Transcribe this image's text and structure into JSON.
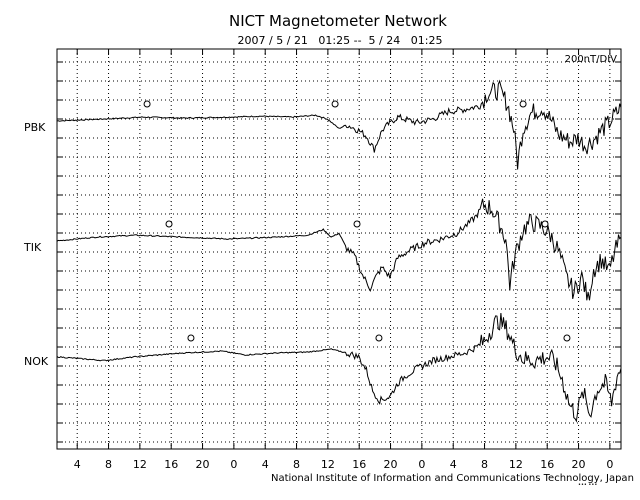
{
  "chart_data": {
    "type": "line",
    "title": "NICT Magnetometer Network",
    "subtitle": "2007 / 5 / 21   01:25 --  5 / 24   01:25",
    "scale_label": "200nT/DIV",
    "credit": "National Institute of Information and Communications Technology, Japan",
    "small_mark": "••• •••",
    "xlabel": "",
    "ylabel": "",
    "grid": true,
    "x_unit": "hours since start (2007/5/21 01:25)",
    "xlim": [
      0,
      72
    ],
    "x_tick_labels": [
      {
        "x": 2.58,
        "label": "4"
      },
      {
        "x": 6.58,
        "label": "8"
      },
      {
        "x": 10.58,
        "label": "12"
      },
      {
        "x": 14.58,
        "label": "16"
      },
      {
        "x": 18.58,
        "label": "20"
      },
      {
        "x": 22.58,
        "label": "0"
      },
      {
        "x": 26.58,
        "label": "4"
      },
      {
        "x": 30.58,
        "label": "8"
      },
      {
        "x": 34.58,
        "label": "12"
      },
      {
        "x": 38.58,
        "label": "16"
      },
      {
        "x": 42.58,
        "label": "20"
      },
      {
        "x": 46.58,
        "label": "0"
      },
      {
        "x": 50.58,
        "label": "4"
      },
      {
        "x": 54.58,
        "label": "8"
      },
      {
        "x": 58.58,
        "label": "12"
      },
      {
        "x": 62.58,
        "label": "16"
      },
      {
        "x": 66.58,
        "label": "20"
      },
      {
        "x": 70.58,
        "label": "0"
      }
    ],
    "y_unit": "divisions (200 nT per division), 0 = station baseline",
    "series": [
      {
        "name": "PBK",
        "baseline_div": 0,
        "local_noon_x": 11.5,
        "points": [
          [
            0,
            -0.1
          ],
          [
            6,
            0.0
          ],
          [
            11,
            0.1
          ],
          [
            16,
            0.05
          ],
          [
            22,
            0.1
          ],
          [
            26,
            0.15
          ],
          [
            30,
            0.1
          ],
          [
            33,
            0.2
          ],
          [
            34.5,
            0.0
          ],
          [
            36,
            -0.5
          ],
          [
            37,
            -0.3
          ],
          [
            38.5,
            -0.6
          ],
          [
            39.5,
            -0.9
          ],
          [
            40.5,
            -1.6
          ],
          [
            41.5,
            -0.6
          ],
          [
            42.5,
            -0.2
          ],
          [
            43.5,
            0.1
          ],
          [
            46,
            -0.2
          ],
          [
            48,
            0.0
          ],
          [
            50,
            0.4
          ],
          [
            52,
            0.5
          ],
          [
            54,
            0.7
          ],
          [
            55,
            1.4
          ],
          [
            56.5,
            1.5
          ],
          [
            57.5,
            0.8
          ],
          [
            58.3,
            -0.5
          ],
          [
            58.8,
            -2.3
          ],
          [
            59.5,
            -0.5
          ],
          [
            60.5,
            0.3
          ],
          [
            62,
            0.6
          ],
          [
            63,
            0.0
          ],
          [
            64,
            -0.8
          ],
          [
            65.5,
            -1.2
          ],
          [
            66.5,
            -1.0
          ],
          [
            67.5,
            -1.4
          ],
          [
            68.5,
            -1.1
          ],
          [
            69.5,
            -0.6
          ],
          [
            70.5,
            -0.2
          ],
          [
            71.2,
            0.2
          ],
          [
            72,
            0.6
          ]
        ]
      },
      {
        "name": "TIK",
        "baseline_div": 0,
        "local_noon_x": 14.3,
        "points": [
          [
            0,
            -0.1
          ],
          [
            5,
            0.1
          ],
          [
            10,
            0.2
          ],
          [
            16,
            0.1
          ],
          [
            22,
            0.0
          ],
          [
            28,
            0.1
          ],
          [
            32,
            0.2
          ],
          [
            34,
            0.5
          ],
          [
            35,
            0.1
          ],
          [
            36,
            0.3
          ],
          [
            37,
            -0.5
          ],
          [
            38,
            -0.9
          ],
          [
            39,
            -1.9
          ],
          [
            40,
            -2.6
          ],
          [
            40.7,
            -2.0
          ],
          [
            41.5,
            -1.5
          ],
          [
            42.5,
            -2.0
          ],
          [
            43.5,
            -1.0
          ],
          [
            45,
            -0.6
          ],
          [
            47,
            -0.2
          ],
          [
            49,
            0.0
          ],
          [
            51,
            0.3
          ],
          [
            52.5,
            0.8
          ],
          [
            53.5,
            1.2
          ],
          [
            54.5,
            1.8
          ],
          [
            55.5,
            1.6
          ],
          [
            56.5,
            0.8
          ],
          [
            57.3,
            0.0
          ],
          [
            57.8,
            -2.4
          ],
          [
            58.5,
            -0.8
          ],
          [
            59.5,
            0.5
          ],
          [
            60.5,
            0.9
          ],
          [
            62,
            0.6
          ],
          [
            63,
            0.2
          ],
          [
            64,
            -0.6
          ],
          [
            65,
            -2.0
          ],
          [
            66,
            -2.8
          ],
          [
            67,
            -2.0
          ],
          [
            67.8,
            -3.2
          ],
          [
            68.5,
            -1.6
          ],
          [
            69.5,
            -1.1
          ],
          [
            70.5,
            -1.7
          ],
          [
            71.2,
            -0.7
          ],
          [
            72,
            0.1
          ]
        ]
      },
      {
        "name": "NOK",
        "baseline_div": 0,
        "local_noon_x": 17.1,
        "points": [
          [
            0,
            -0.2
          ],
          [
            3,
            -0.3
          ],
          [
            6,
            -0.4
          ],
          [
            10,
            -0.2
          ],
          [
            16,
            0.0
          ],
          [
            21,
            0.1
          ],
          [
            24,
            -0.1
          ],
          [
            28,
            0.0
          ],
          [
            32,
            0.05
          ],
          [
            35,
            0.2
          ],
          [
            37,
            0.0
          ],
          [
            38.5,
            -0.2
          ],
          [
            39.5,
            -0.9
          ],
          [
            40.3,
            -2.0
          ],
          [
            41.2,
            -2.5
          ],
          [
            42.5,
            -2.3
          ],
          [
            43.5,
            -1.6
          ],
          [
            44.5,
            -1.2
          ],
          [
            46,
            -0.8
          ],
          [
            48,
            -0.4
          ],
          [
            50,
            -0.2
          ],
          [
            52,
            0.0
          ],
          [
            53.5,
            0.3
          ],
          [
            54.5,
            0.6
          ],
          [
            55.2,
            1.1
          ],
          [
            56,
            1.6
          ],
          [
            56.5,
            1.7
          ],
          [
            57.5,
            1.2
          ],
          [
            58.5,
            0.2
          ],
          [
            59.5,
            -0.3
          ],
          [
            61,
            -0.4
          ],
          [
            62.5,
            -0.2
          ],
          [
            63.5,
            -0.4
          ],
          [
            64.5,
            -1.4
          ],
          [
            65.5,
            -2.8
          ],
          [
            66.3,
            -3.2
          ],
          [
            67.2,
            -2.1
          ],
          [
            68,
            -3.2
          ],
          [
            69,
            -1.9
          ],
          [
            70,
            -1.6
          ],
          [
            70.8,
            -2.6
          ],
          [
            71.5,
            -1.2
          ],
          [
            72,
            -0.8
          ]
        ]
      }
    ]
  }
}
